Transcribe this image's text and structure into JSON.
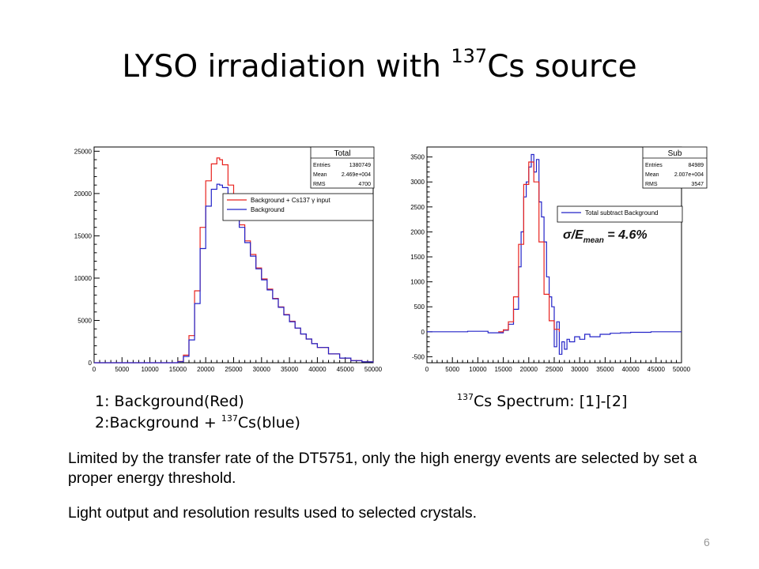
{
  "slide": {
    "title_main": "LYSO irradiation with ",
    "title_sup": "137",
    "title_tail": "Cs source",
    "caption_left_line1": "1: Background(Red)",
    "caption_left_line2_pre": "2:Background + ",
    "caption_left_line2_sup": "137",
    "caption_left_line2_post": "Cs(blue)",
    "caption_right_sup": "137",
    "caption_right_text": "Cs Spectrum: [1]-[2]",
    "paragraph1": "Limited by the transfer rate of the DT5751, only the high energy events are selected by set  a proper energy threshold.",
    "paragraph2": "Light output and resolution results  used to selected crystals.",
    "page_number": "6"
  },
  "chart_data": [
    {
      "type": "line",
      "stats_box": {
        "name": "Total",
        "rows": [
          {
            "label": "Entries",
            "value": "1380749"
          },
          {
            "label": "Mean",
            "value": "2.469e+004"
          },
          {
            "label": "RMS",
            "value": "4700"
          }
        ]
      },
      "xlim": [
        0,
        50000
      ],
      "ylim": [
        0,
        25500
      ],
      "x_ticks": [
        "0",
        "5000",
        "10000",
        "15000",
        "20000",
        "25000",
        "30000",
        "35000",
        "40000",
        "45000",
        "50000"
      ],
      "y_ticks": [
        0,
        5000,
        10000,
        15000,
        20000,
        25000
      ],
      "legend_position": "top-right",
      "series": [
        {
          "name": "Background + Cs137 γ input",
          "color": "#e8231f",
          "x": [
            0,
            14000,
            15000,
            16000,
            17000,
            18000,
            19000,
            20000,
            21000,
            22000,
            22500,
            23000,
            24000,
            25000,
            26000,
            27000,
            28000,
            29000,
            30000,
            31000,
            32000,
            33000,
            34000,
            35000,
            36000,
            37000,
            38000,
            39000,
            40000,
            42000,
            44000,
            46000,
            48000,
            50000
          ],
          "y": [
            0,
            0,
            150,
            900,
            3200,
            8500,
            16000,
            21500,
            23500,
            24200,
            24000,
            23400,
            21000,
            18600,
            16300,
            14400,
            12800,
            11200,
            9900,
            8700,
            7600,
            6600,
            5700,
            4900,
            4100,
            3400,
            2800,
            2250,
            1800,
            1050,
            550,
            250,
            100,
            30
          ]
        },
        {
          "name": "Background",
          "color": "#2323c8",
          "x": [
            0,
            14000,
            15000,
            16000,
            17000,
            18000,
            19000,
            20000,
            21000,
            22000,
            22500,
            23000,
            24000,
            25000,
            26000,
            27000,
            28000,
            29000,
            30000,
            31000,
            32000,
            33000,
            34000,
            35000,
            36000,
            37000,
            38000,
            39000,
            40000,
            42000,
            44000,
            46000,
            48000,
            50000
          ],
          "y": [
            0,
            0,
            120,
            750,
            2700,
            7000,
            13500,
            18500,
            20500,
            21100,
            21000,
            20700,
            19800,
            18000,
            16000,
            14200,
            12600,
            11100,
            9800,
            8600,
            7550,
            6550,
            5650,
            4850,
            4100,
            3400,
            2800,
            2250,
            1800,
            1050,
            550,
            250,
            100,
            30
          ]
        }
      ]
    },
    {
      "type": "line",
      "stats_box": {
        "name": "Sub",
        "rows": [
          {
            "label": "Entries",
            "value": "84989"
          },
          {
            "label": "Mean",
            "value": "2.007e+004"
          },
          {
            "label": "RMS",
            "value": "3547"
          }
        ]
      },
      "annotation": "σ/E_mean = 4.6%",
      "xlim": [
        0,
        50000
      ],
      "ylim": [
        -620,
        3700
      ],
      "x_ticks": [
        "0",
        "5000",
        "10000",
        "15000",
        "20000",
        "25000",
        "30000",
        "35000",
        "40000",
        "45000",
        "50000"
      ],
      "y_ticks": [
        -500,
        0,
        500,
        1000,
        1500,
        2000,
        2500,
        3000,
        3500
      ],
      "legend_position": "top-right",
      "series": [
        {
          "name": "Total subtract Background",
          "color": "#2323c8",
          "x": [
            0,
            4000,
            8000,
            12000,
            15000,
            16000,
            17000,
            18000,
            18500,
            19000,
            19500,
            20000,
            20500,
            21000,
            21500,
            22000,
            22500,
            23000,
            23500,
            24000,
            24500,
            25000,
            25500,
            26000,
            26500,
            27000,
            27500,
            28000,
            29000,
            30000,
            31000,
            32000,
            34000,
            36000,
            38000,
            40000,
            44000,
            48000,
            50000
          ],
          "y": [
            0,
            0,
            10,
            -20,
            30,
            150,
            450,
            1300,
            2000,
            2700,
            3000,
            3300,
            3550,
            3200,
            3450,
            2600,
            2300,
            1800,
            1100,
            700,
            500,
            -300,
            200,
            -450,
            -200,
            -350,
            -150,
            -200,
            -100,
            -150,
            -50,
            -100,
            -50,
            -30,
            -20,
            -10,
            0,
            0,
            0
          ]
        },
        {
          "name": "",
          "color": "#e8231f",
          "x": [
            14000,
            15000,
            16000,
            17000,
            18000,
            19000,
            20000,
            21000,
            22000,
            23000,
            24000,
            25000,
            26000
          ],
          "y": [
            0,
            40,
            200,
            700,
            1750,
            2950,
            3400,
            3000,
            1800,
            750,
            220,
            50,
            0
          ]
        }
      ]
    }
  ]
}
